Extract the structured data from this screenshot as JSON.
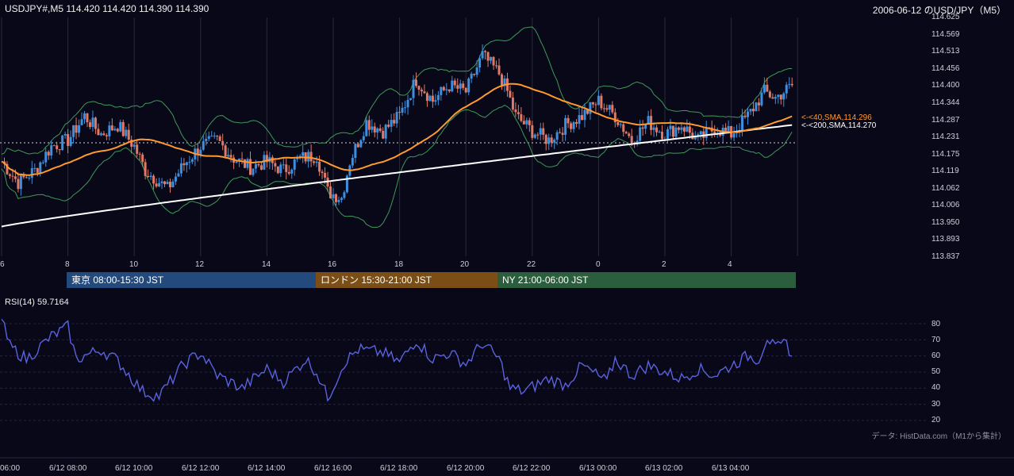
{
  "header": {
    "ohlc_text": "USDJPY#,M5 114.420 114.420 114.390 114.390",
    "title": "2006-06-12 のUSD/JPY（M5）"
  },
  "price_axis": {
    "ticks": [
      "114.625",
      "114.569",
      "114.513",
      "114.456",
      "114.400",
      "114.344",
      "114.287",
      "114.231",
      "114.175",
      "114.119",
      "114.062",
      "114.006",
      "113.950",
      "113.893",
      "113.837"
    ],
    "min": 113.837,
    "max": 114.625,
    "reference_line": 114.21
  },
  "hour_axis": {
    "labels": [
      "6",
      "8",
      "10",
      "12",
      "14",
      "16",
      "18",
      "20",
      "22",
      "0",
      "2",
      "4"
    ]
  },
  "sessions": [
    {
      "label": "東京 08:00-15:30 JST",
      "color": "#234a7c"
    },
    {
      "label": "ロンドン 15:30-21:00 JST",
      "color": "#7a4e14"
    },
    {
      "label": "NY 21:00-06:00 JST",
      "color": "#2a5e3c"
    }
  ],
  "moving_averages": {
    "sma40_label": "<-<40,SMA,114.296",
    "sma200_label": "<-<200,SMA,114.270",
    "sma40_color": "#ff9a2e",
    "sma200_color": "#ffffff",
    "bollinger_color": "#3f9a57"
  },
  "candle_colors": {
    "up": "#3d8fe0",
    "down": "#e07a66"
  },
  "rsi": {
    "label": "RSI(14) 59.7164",
    "ticks": [
      "80",
      "70",
      "60",
      "50",
      "40",
      "30",
      "20"
    ],
    "line_color": "#5b62dd"
  },
  "credit": "データ: HistData.com（M1から集計）",
  "date_axis": {
    "labels": [
      "06:00",
      "6/12 08:00",
      "6/12 10:00",
      "6/12 12:00",
      "6/12 14:00",
      "6/12 16:00",
      "6/12 18:00",
      "6/12 20:00",
      "6/12 22:00",
      "6/13 00:00",
      "6/13 02:00",
      "6/13 04:00"
    ]
  },
  "chart_data": {
    "type": "candlestick",
    "title": "2006-06-12 のUSD/JPY（M5）",
    "ylim": [
      113.837,
      114.625
    ],
    "sma40_last": 114.296,
    "sma200_last": 114.27,
    "close_anchors": [
      [
        "06:00",
        114.15
      ],
      [
        "06:30",
        114.08
      ],
      [
        "07:00",
        114.12
      ],
      [
        "07:30",
        114.2
      ],
      [
        "08:00",
        114.22
      ],
      [
        "08:30",
        114.3
      ],
      [
        "09:00",
        114.24
      ],
      [
        "09:30",
        114.27
      ],
      [
        "10:00",
        114.2
      ],
      [
        "10:20",
        114.12
      ],
      [
        "11:00",
        114.06
      ],
      [
        "11:30",
        114.14
      ],
      [
        "12:00",
        114.2
      ],
      [
        "12:30",
        114.22
      ],
      [
        "13:00",
        114.16
      ],
      [
        "13:30",
        114.13
      ],
      [
        "14:00",
        114.15
      ],
      [
        "14:30",
        114.12
      ],
      [
        "15:00",
        114.16
      ],
      [
        "15:30",
        114.17
      ],
      [
        "15:50",
        114.05
      ],
      [
        "16:15",
        114.03
      ],
      [
        "16:30",
        114.15
      ],
      [
        "17:00",
        114.28
      ],
      [
        "17:30",
        114.25
      ],
      [
        "18:00",
        114.3
      ],
      [
        "18:30",
        114.42
      ],
      [
        "19:00",
        114.35
      ],
      [
        "19:30",
        114.4
      ],
      [
        "20:00",
        114.38
      ],
      [
        "20:30",
        114.5
      ],
      [
        "21:00",
        114.44
      ],
      [
        "21:15",
        114.38
      ],
      [
        "21:30",
        114.3
      ],
      [
        "22:00",
        114.25
      ],
      [
        "22:30",
        114.22
      ],
      [
        "23:00",
        114.27
      ],
      [
        "23:30",
        114.3
      ],
      [
        "00:00",
        114.35
      ],
      [
        "00:30",
        114.3
      ],
      [
        "01:00",
        114.22
      ],
      [
        "01:30",
        114.28
      ],
      [
        "02:00",
        114.24
      ],
      [
        "02:30",
        114.27
      ],
      [
        "03:00",
        114.22
      ],
      [
        "03:30",
        114.26
      ],
      [
        "04:00",
        114.24
      ],
      [
        "04:30",
        114.3
      ],
      [
        "05:00",
        114.38
      ],
      [
        "05:20",
        114.36
      ],
      [
        "05:50",
        114.4
      ]
    ],
    "rsi_anchors": [
      [
        "06:00",
        82
      ],
      [
        "06:15",
        66
      ],
      [
        "06:45",
        58
      ],
      [
        "07:30",
        72
      ],
      [
        "08:00",
        78
      ],
      [
        "08:15",
        58
      ],
      [
        "09:00",
        64
      ],
      [
        "09:30",
        57
      ],
      [
        "10:15",
        38
      ],
      [
        "10:45",
        35
      ],
      [
        "11:30",
        55
      ],
      [
        "12:00",
        62
      ],
      [
        "12:30",
        48
      ],
      [
        "13:15",
        40
      ],
      [
        "14:00",
        52
      ],
      [
        "14:30",
        44
      ],
      [
        "15:10",
        58
      ],
      [
        "15:30",
        50
      ],
      [
        "15:50",
        34
      ],
      [
        "16:20",
        56
      ],
      [
        "16:45",
        64
      ],
      [
        "17:30",
        62
      ],
      [
        "18:00",
        56
      ],
      [
        "18:30",
        70
      ],
      [
        "19:00",
        58
      ],
      [
        "19:30",
        62
      ],
      [
        "20:00",
        55
      ],
      [
        "20:30",
        68
      ],
      [
        "21:00",
        58
      ],
      [
        "21:20",
        40
      ],
      [
        "21:45",
        38
      ],
      [
        "22:30",
        46
      ],
      [
        "23:00",
        42
      ],
      [
        "23:30",
        54
      ],
      [
        "00:15",
        44
      ],
      [
        "00:30",
        58
      ],
      [
        "01:00",
        48
      ],
      [
        "01:30",
        54
      ],
      [
        "02:00",
        50
      ],
      [
        "02:30",
        46
      ],
      [
        "03:00",
        52
      ],
      [
        "03:30",
        48
      ],
      [
        "04:00",
        54
      ],
      [
        "04:30",
        60
      ],
      [
        "04:50",
        58
      ],
      [
        "05:05",
        72
      ],
      [
        "05:20",
        64
      ],
      [
        "05:40",
        68
      ],
      [
        "05:50",
        60
      ]
    ]
  }
}
